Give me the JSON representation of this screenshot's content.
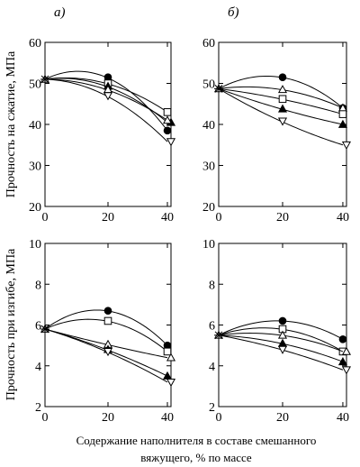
{
  "xlabel_lines": [
    "Содержание наполнителя в составе смешанного",
    "вяжущего, % по массе"
  ],
  "chart_data": [
    {
      "type": "line",
      "panel": "а)",
      "ylabel": "Прочность на сжатие, МПа",
      "x": [
        0,
        20,
        40
      ],
      "xlim": [
        0,
        40
      ],
      "xticks": [
        0,
        20,
        40
      ],
      "ylim": [
        20,
        60
      ],
      "yticks": [
        20,
        30,
        40,
        50,
        60
      ],
      "grid": false,
      "series": [
        {
          "marker": "circle-filled",
          "values": [
            51,
            51.5,
            38.5
          ]
        },
        {
          "marker": "square-open",
          "values": [
            51,
            50,
            43
          ]
        },
        {
          "marker": "triangle-filled",
          "values": [
            51,
            49.3,
            40.5
          ]
        },
        {
          "marker": "triangle-open",
          "values": [
            51,
            48.5,
            41
          ]
        },
        {
          "marker": "triangle-down-open",
          "values": [
            51,
            47,
            35.8
          ]
        }
      ]
    },
    {
      "type": "line",
      "panel": "б)",
      "ylabel": "",
      "x": [
        0,
        20,
        40
      ],
      "xlim": [
        0,
        40
      ],
      "xticks": [
        0,
        20,
        40
      ],
      "ylim": [
        20,
        60
      ],
      "yticks": [
        20,
        30,
        40,
        50,
        60
      ],
      "grid": false,
      "series": [
        {
          "marker": "circle-filled",
          "values": [
            48.7,
            51.5,
            44
          ]
        },
        {
          "marker": "triangle-open",
          "values": [
            48.7,
            48.5,
            44
          ]
        },
        {
          "marker": "square-open",
          "values": [
            48.7,
            46.2,
            42.5
          ]
        },
        {
          "marker": "triangle-filled",
          "values": [
            48.7,
            43.8,
            40
          ]
        },
        {
          "marker": "triangle-down-open",
          "values": [
            48.7,
            40.8,
            35
          ]
        }
      ]
    },
    {
      "type": "line",
      "panel": "",
      "ylabel": "Прочность при изгибе, МПа",
      "x": [
        0,
        20,
        40
      ],
      "xlim": [
        0,
        40
      ],
      "xticks": [
        0,
        20,
        40
      ],
      "ylim": [
        2,
        10
      ],
      "yticks": [
        2,
        4,
        6,
        8,
        10
      ],
      "grid": false,
      "series": [
        {
          "marker": "circle-filled",
          "values": [
            5.8,
            6.7,
            5
          ]
        },
        {
          "marker": "square-open",
          "values": [
            5.8,
            6.2,
            4.7
          ]
        },
        {
          "marker": "triangle-open",
          "values": [
            5.8,
            5.05,
            4.4
          ]
        },
        {
          "marker": "triangle-filled",
          "values": [
            5.8,
            4.8,
            3.5
          ]
        },
        {
          "marker": "triangle-down-open",
          "values": [
            5.8,
            4.7,
            3.2
          ]
        }
      ]
    },
    {
      "type": "line",
      "panel": "",
      "ylabel": "",
      "x": [
        0,
        20,
        40
      ],
      "xlim": [
        0,
        40
      ],
      "xticks": [
        0,
        20,
        40
      ],
      "ylim": [
        2,
        10
      ],
      "yticks": [
        2,
        4,
        6,
        8,
        10
      ],
      "grid": false,
      "series": [
        {
          "marker": "circle-filled",
          "values": [
            5.5,
            6.2,
            5.3
          ]
        },
        {
          "marker": "square-open",
          "values": [
            5.5,
            5.8,
            4.7
          ]
        },
        {
          "marker": "triangle-open",
          "values": [
            5.5,
            5.5,
            4.7
          ]
        },
        {
          "marker": "triangle-filled",
          "values": [
            5.5,
            5.1,
            4.2
          ]
        },
        {
          "marker": "triangle-down-open",
          "values": [
            5.5,
            4.8,
            3.8
          ]
        }
      ]
    }
  ]
}
